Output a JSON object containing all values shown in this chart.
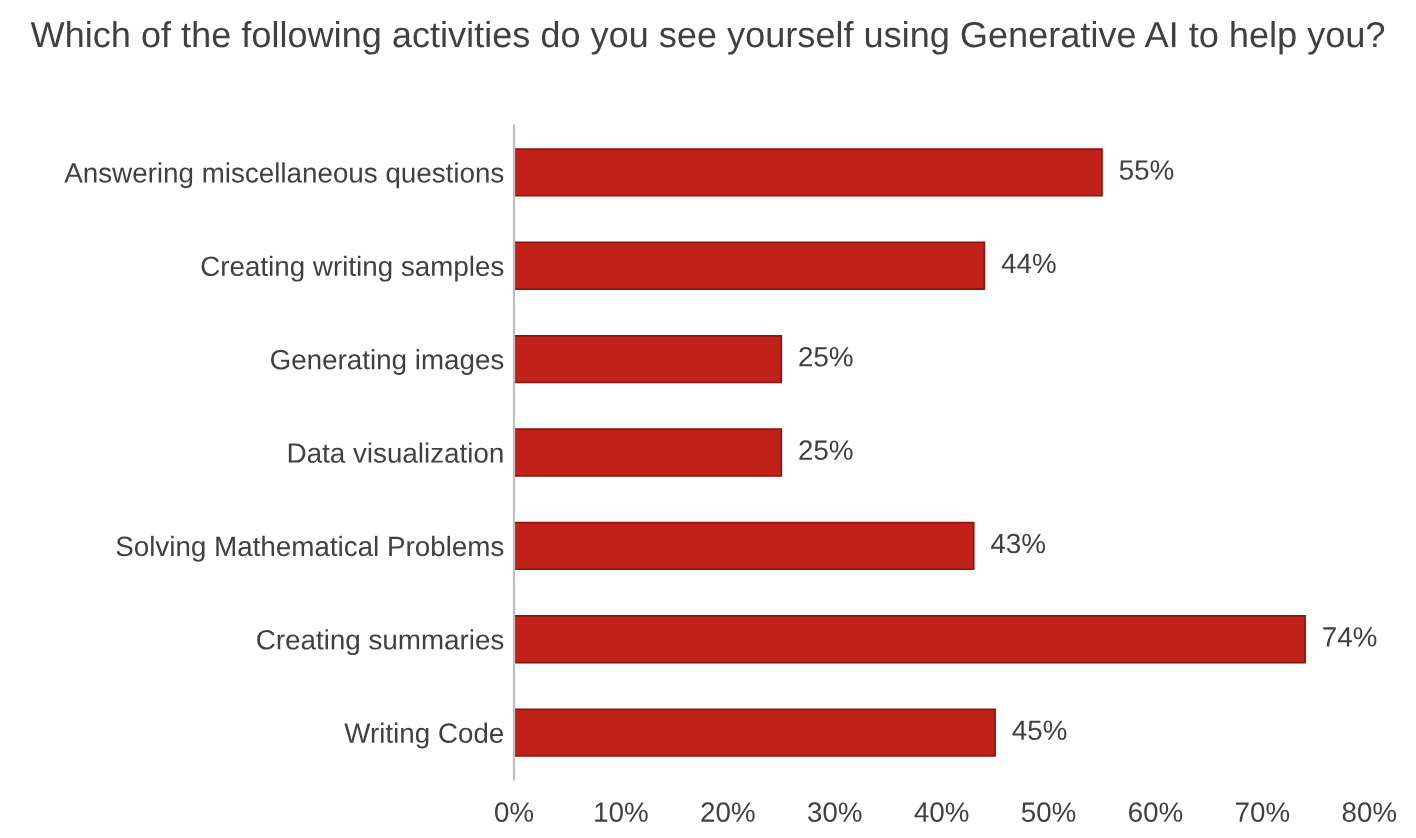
{
  "chart_data": {
    "type": "bar",
    "orientation": "horizontal",
    "title": "Which of the following activities do you see yourself using Generative AI to help you?",
    "categories": [
      "Answering miscellaneous questions",
      "Creating writing samples",
      "Generating images",
      "Data visualization",
      "Solving Mathematical Problems",
      "Creating summaries",
      "Writing Code"
    ],
    "values": [
      55,
      44,
      25,
      25,
      43,
      74,
      45
    ],
    "value_labels": [
      "55%",
      "44%",
      "25%",
      "25%",
      "43%",
      "74%",
      "45%"
    ],
    "color": "#c0221a",
    "xlim": [
      0,
      80
    ],
    "xticks": [
      {
        "value": 0,
        "label": "0%"
      },
      {
        "value": 10,
        "label": "10%"
      },
      {
        "value": 20,
        "label": "20%"
      },
      {
        "value": 30,
        "label": "30%"
      },
      {
        "value": 40,
        "label": "40%"
      },
      {
        "value": 50,
        "label": "50%"
      },
      {
        "value": 60,
        "label": "60%"
      },
      {
        "value": 70,
        "label": "70%"
      },
      {
        "value": 80,
        "label": "80%"
      }
    ],
    "grid": false,
    "legend": false
  }
}
